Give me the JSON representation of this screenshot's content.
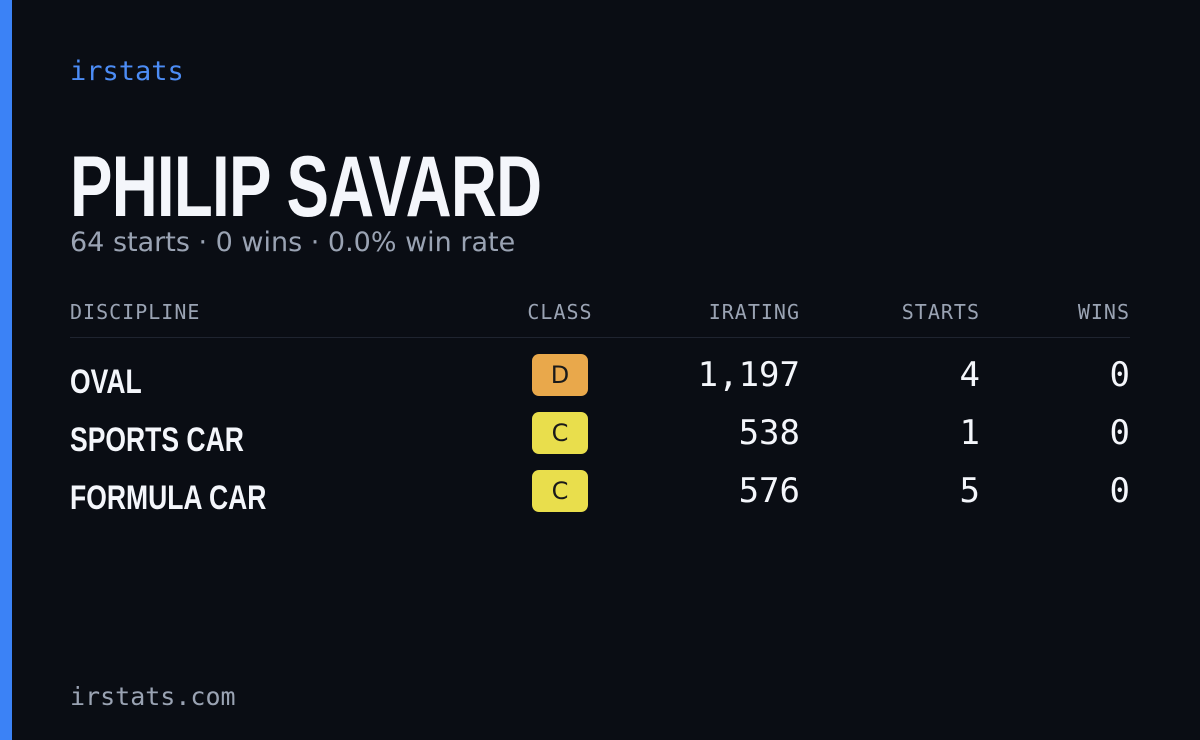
{
  "brand": "irstats",
  "driver": {
    "name": "PHILIP SAVARD",
    "summary": "64 starts · 0 wins · 0.0% win rate"
  },
  "table": {
    "columns": [
      "DISCIPLINE",
      "CLASS",
      "IRATING",
      "STARTS",
      "WINS"
    ],
    "rows": [
      [
        "OVAL",
        "D",
        "1,197",
        "4",
        "0"
      ],
      [
        "SPORTS CAR",
        "C",
        "538",
        "1",
        "0"
      ],
      [
        "FORMULA CAR",
        "C",
        "576",
        "5",
        "0"
      ]
    ],
    "class_colors": {
      "D": "#e9a84b",
      "C": "#e9de4c"
    }
  },
  "footer": "irstats.com"
}
